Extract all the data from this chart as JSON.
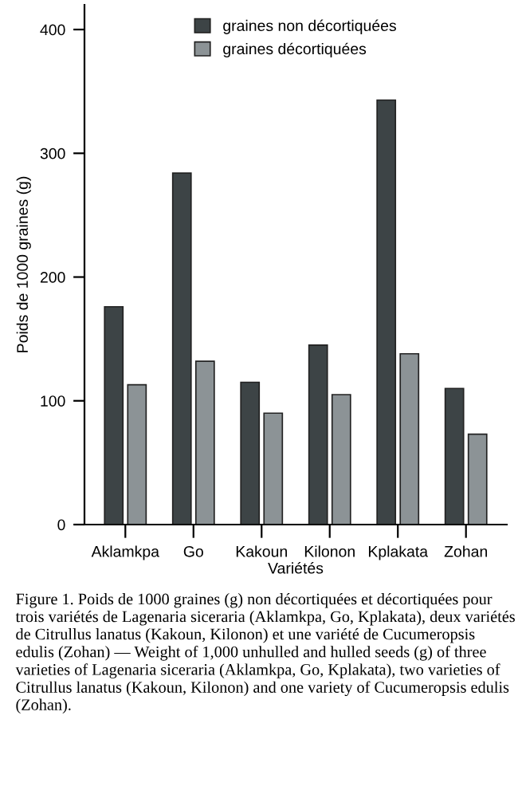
{
  "chart_data": {
    "type": "bar",
    "xlabel": "Variétés",
    "ylabel": "Poids de 1000 graines (g)",
    "categories": [
      "Aklamkpa",
      "Go",
      "Kakoun",
      "Kilonon",
      "Kplakata",
      "Zohan"
    ],
    "series": [
      {
        "name": "graines non décortiquées",
        "color": "#3d4446",
        "values": [
          176,
          284,
          115,
          145,
          343,
          110
        ]
      },
      {
        "name": "graines décortiquées",
        "color": "#8c9396",
        "values": [
          113,
          132,
          90,
          105,
          138,
          73
        ]
      }
    ],
    "ylim": [
      0,
      420
    ],
    "yticks": [
      0,
      100,
      200,
      300,
      400
    ],
    "grid": false,
    "legend": "top",
    "annotations": [
      "Figure 1. Poids de 1000 graines (g) non décortiquées et décortiquées pour trois variétés de Lagenaria siceraria (Aklamkpa, Go, Kplakata), deux variétés de Citrullus lanatus (Kakoun, Kilonon) et une variété de Cucumeropsis edulis (Zohan) — Weight of 1,000 unhulled and hulled seeds (g) of three varieties of Lagenaria siceraria (Aklamkpa, Go, Kplakata), two varieties of Citrullus lanatus (Kakoun, Kilonon) and one variety of Cucumeropsis edulis (Zohan)."
    ]
  }
}
